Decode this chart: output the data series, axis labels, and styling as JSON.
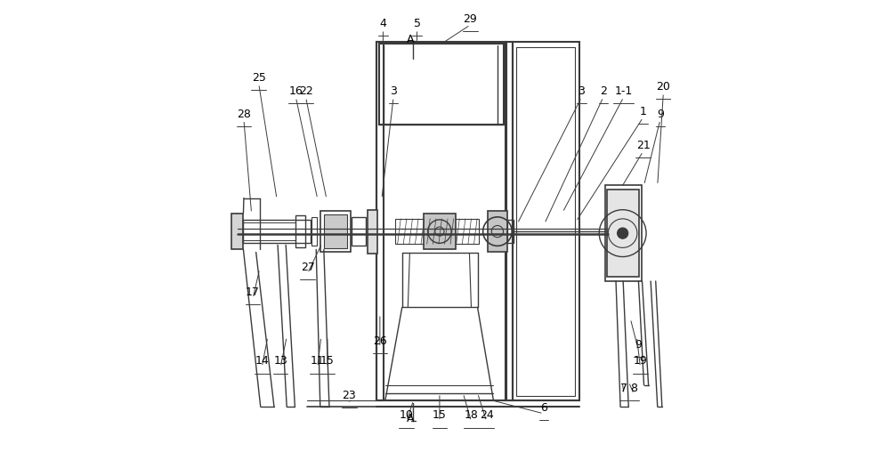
{
  "bg_color": "#ffffff",
  "line_color": "#3a3a3a",
  "lw": 1.0,
  "fig_width": 10.0,
  "fig_height": 5.08
}
